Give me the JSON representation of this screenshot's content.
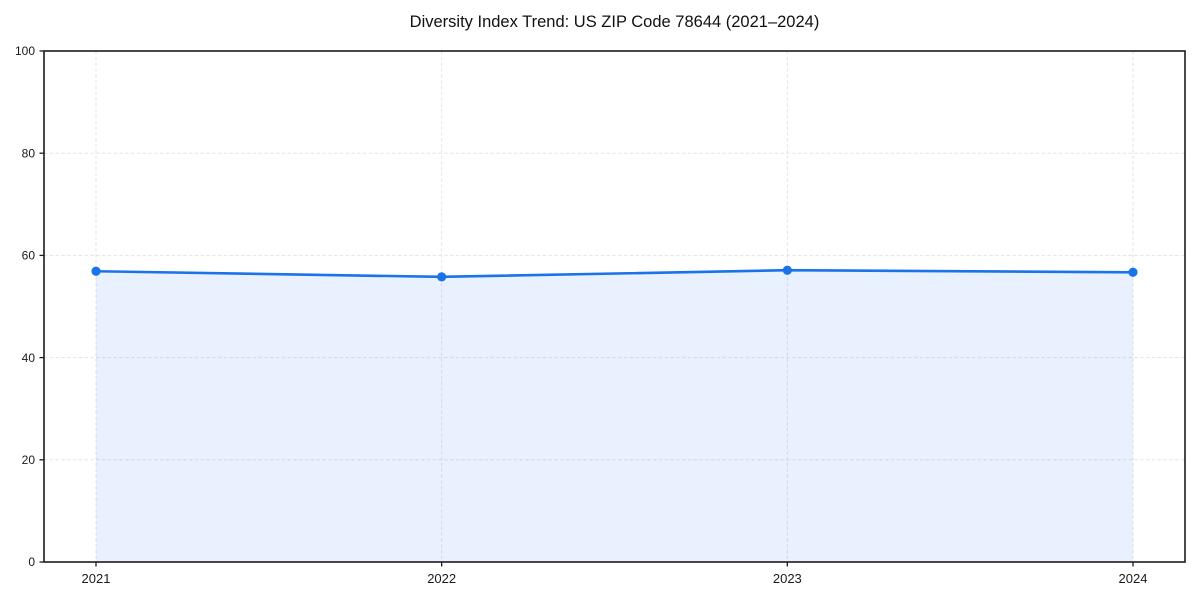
{
  "chart_data": {
    "type": "line",
    "title": "Diversity Index Trend: US ZIP Code 78644 (2021–2024)",
    "categories": [
      "2021",
      "2022",
      "2023",
      "2024"
    ],
    "series": [
      {
        "name": "Diversity Index",
        "values": [
          56.9,
          55.8,
          57.1,
          56.7
        ]
      }
    ],
    "xlabel": "",
    "ylabel": "",
    "ylim": [
      0,
      100
    ],
    "yticks": [
      0,
      20,
      40,
      60,
      80,
      100
    ],
    "grid": "dashed",
    "legend_position": "none",
    "colors": {
      "line": "#1a73e8",
      "marker": "#1a73e8",
      "area_fill": "rgba(26,115,232,0.10)",
      "grid": "#e3e3e3",
      "spine": "#1c1c1c",
      "tick_text": "#1a1a1a",
      "background": "#ffffff"
    }
  }
}
